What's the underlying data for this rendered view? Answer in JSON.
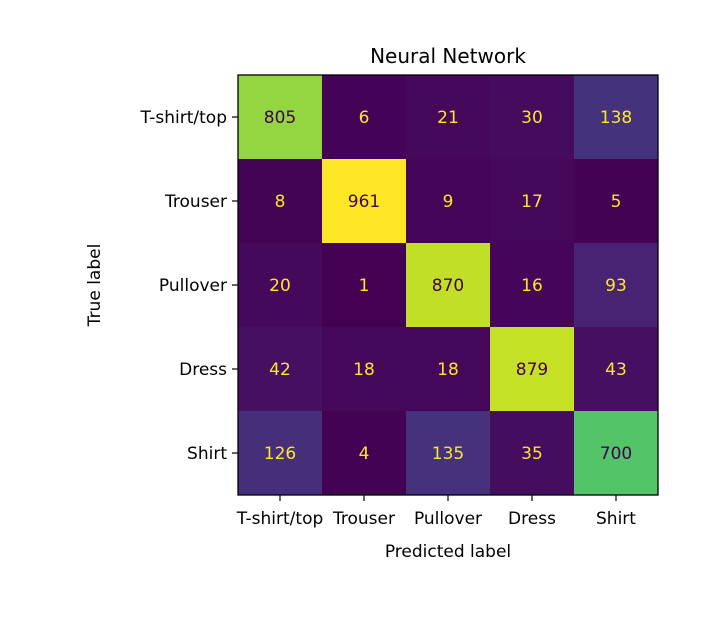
{
  "chart_data": {
    "type": "heatmap",
    "title": "Neural Network",
    "xlabel": "Predicted label",
    "ylabel": "True label",
    "x_categories": [
      "T-shirt/top",
      "Trouser",
      "Pullover",
      "Dress",
      "Shirt"
    ],
    "y_categories": [
      "T-shirt/top",
      "Trouser",
      "Pullover",
      "Dress",
      "Shirt"
    ],
    "values": [
      [
        805,
        6,
        21,
        30,
        138
      ],
      [
        8,
        961,
        9,
        17,
        5
      ],
      [
        20,
        1,
        870,
        16,
        93
      ],
      [
        42,
        18,
        18,
        879,
        43
      ],
      [
        126,
        4,
        135,
        35,
        700
      ]
    ],
    "colormap": "viridis",
    "value_range": [
      1,
      961
    ],
    "grid": false,
    "colors": {
      "low": "#440154",
      "high": "#fde725",
      "text_on_dark": "#fde725",
      "text_on_light": "#440154"
    }
  }
}
